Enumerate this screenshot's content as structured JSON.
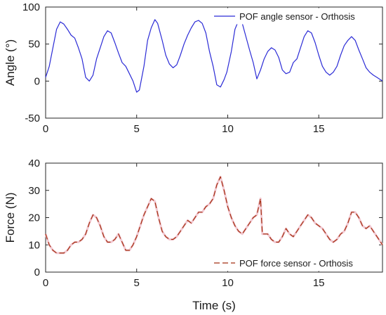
{
  "chart_data": [
    {
      "type": "line",
      "title": "",
      "xlabel": "",
      "ylabel": "Angle (°)",
      "xlim": [
        0,
        18.5
      ],
      "ylim": [
        -50,
        100
      ],
      "xticks": [
        0,
        5,
        10,
        15
      ],
      "yticks": [
        -50,
        0,
        50,
        100
      ],
      "xtick_labels": [
        "0",
        "5",
        "10",
        "15"
      ],
      "ytick_labels": [
        "-50",
        "0",
        "50",
        "100"
      ],
      "grid": false,
      "legend_position": "top-right",
      "series": [
        {
          "name": "POF angle sensor - Orthosis",
          "color": "#2b2bd6",
          "line_style": "solid",
          "x": [
            0.0,
            0.2,
            0.4,
            0.6,
            0.8,
            1.0,
            1.2,
            1.4,
            1.6,
            1.8,
            2.0,
            2.2,
            2.4,
            2.6,
            2.8,
            3.0,
            3.2,
            3.4,
            3.6,
            3.8,
            4.0,
            4.2,
            4.4,
            4.6,
            4.8,
            5.0,
            5.15,
            5.4,
            5.6,
            5.8,
            6.0,
            6.15,
            6.4,
            6.6,
            6.8,
            7.0,
            7.2,
            7.4,
            7.6,
            7.8,
            8.0,
            8.2,
            8.4,
            8.6,
            8.8,
            9.0,
            9.2,
            9.4,
            9.6,
            9.8,
            9.95,
            10.2,
            10.4,
            10.6,
            10.8,
            11.0,
            11.2,
            11.4,
            11.6,
            11.8,
            12.0,
            12.2,
            12.4,
            12.6,
            12.8,
            13.0,
            13.2,
            13.4,
            13.6,
            13.8,
            14.0,
            14.2,
            14.4,
            14.6,
            14.8,
            15.0,
            15.2,
            15.4,
            15.6,
            15.8,
            16.0,
            16.2,
            16.4,
            16.6,
            16.8,
            17.0,
            17.2,
            17.4,
            17.6,
            17.8,
            18.0,
            18.2,
            18.5
          ],
          "y": [
            5,
            20,
            45,
            70,
            80,
            77,
            70,
            62,
            58,
            45,
            30,
            5,
            0,
            8,
            30,
            45,
            60,
            68,
            65,
            52,
            38,
            25,
            20,
            10,
            0,
            -15,
            -12,
            20,
            55,
            72,
            83,
            78,
            55,
            35,
            23,
            18,
            22,
            35,
            50,
            62,
            72,
            80,
            82,
            78,
            65,
            40,
            20,
            -5,
            -8,
            2,
            12,
            40,
            70,
            82,
            78,
            60,
            42,
            25,
            3,
            15,
            30,
            40,
            45,
            42,
            32,
            15,
            10,
            12,
            25,
            30,
            45,
            60,
            68,
            65,
            52,
            35,
            20,
            12,
            8,
            12,
            20,
            35,
            48,
            55,
            60,
            55,
            42,
            30,
            18,
            12,
            8,
            5,
            0
          ]
        }
      ]
    },
    {
      "type": "line",
      "title": "",
      "xlabel": "Time (s)",
      "ylabel": "Force (N)",
      "xlim": [
        0,
        18.5
      ],
      "ylim": [
        0,
        40
      ],
      "xticks": [
        0,
        5,
        10,
        15
      ],
      "yticks": [
        0,
        10,
        20,
        30,
        40
      ],
      "xtick_labels": [
        "0",
        "5",
        "10",
        "15"
      ],
      "ytick_labels": [
        "0",
        "10",
        "20",
        "30",
        "40"
      ],
      "grid": false,
      "legend_position": "bottom-right",
      "series": [
        {
          "name": "POF force sensor - Orthosis",
          "color": "#a32d10",
          "line_style": "dashed",
          "x": [
            0.0,
            0.2,
            0.4,
            0.6,
            0.8,
            1.0,
            1.2,
            1.4,
            1.6,
            1.8,
            2.0,
            2.2,
            2.4,
            2.6,
            2.8,
            3.0,
            3.2,
            3.4,
            3.6,
            3.8,
            4.0,
            4.2,
            4.4,
            4.6,
            4.8,
            5.0,
            5.2,
            5.4,
            5.6,
            5.8,
            6.0,
            6.2,
            6.4,
            6.6,
            6.8,
            7.0,
            7.2,
            7.4,
            7.6,
            7.8,
            8.0,
            8.2,
            8.4,
            8.6,
            8.8,
            9.0,
            9.2,
            9.4,
            9.6,
            9.8,
            10.0,
            10.2,
            10.4,
            10.6,
            10.8,
            11.0,
            11.2,
            11.4,
            11.6,
            11.8,
            11.9,
            12.0,
            12.2,
            12.4,
            12.6,
            12.8,
            13.0,
            13.2,
            13.4,
            13.6,
            13.8,
            14.0,
            14.2,
            14.4,
            14.6,
            14.8,
            15.0,
            15.2,
            15.4,
            15.6,
            15.8,
            16.0,
            16.2,
            16.4,
            16.6,
            16.8,
            17.0,
            17.2,
            17.4,
            17.6,
            17.8,
            18.0,
            18.2,
            18.5
          ],
          "y": [
            14,
            10,
            8,
            7,
            7,
            7,
            8,
            10,
            11,
            11,
            12,
            14,
            18,
            21,
            20,
            17,
            13,
            11,
            11,
            12,
            14,
            11,
            8,
            8,
            10,
            13,
            17,
            21,
            24,
            27,
            26,
            20,
            15,
            13,
            12,
            12,
            13,
            15,
            17,
            19,
            18,
            20,
            22,
            22,
            24,
            25,
            27,
            32,
            35,
            30,
            24,
            20,
            17,
            15,
            14,
            16,
            18,
            20,
            21,
            27,
            14,
            14,
            14,
            12,
            11,
            11,
            13,
            16,
            14,
            13,
            15,
            17,
            19,
            21,
            20,
            18,
            17,
            16,
            14,
            12,
            11,
            12,
            14,
            15,
            18,
            22,
            22,
            20,
            17,
            16,
            17,
            15,
            13,
            10
          ]
        }
      ]
    }
  ]
}
